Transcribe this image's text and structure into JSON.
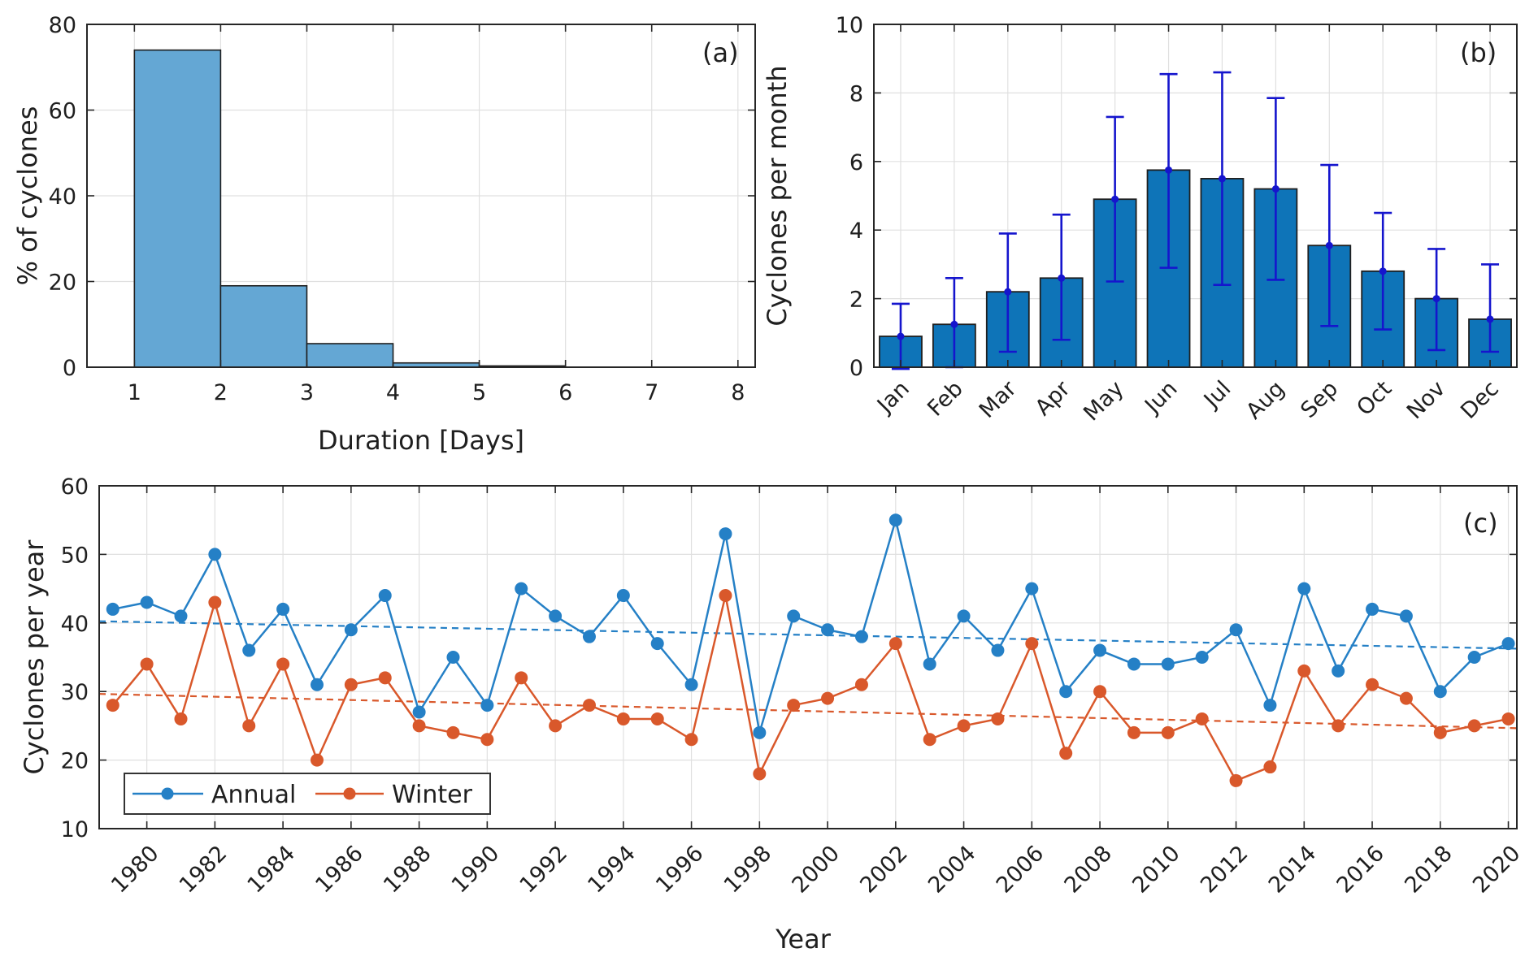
{
  "figure": {
    "background": "#ffffff",
    "colors": {
      "hist_fill": "#64a7d4",
      "hist_edge": "#1f1f1f",
      "bar_fill": "#0e74b8",
      "bar_edge": "#1f1f1f",
      "errorbar": "#1515cd",
      "annual": "#2580c6",
      "winter": "#d9582b",
      "grid": "#e0e0e0",
      "axis": "#262626",
      "text": "#1f1f1f"
    }
  },
  "chart_data": [
    {
      "id": "a",
      "type": "bar",
      "panel_label": "(a)",
      "xlabel": "Duration [Days]",
      "ylabel": "% of cyclones",
      "bin_edges": [
        1,
        2,
        3,
        4,
        5,
        6,
        7,
        8
      ],
      "values": [
        74,
        19,
        5.5,
        1,
        0.3,
        0,
        0
      ],
      "xticks": [
        1,
        2,
        3,
        4,
        5,
        6,
        7,
        8
      ],
      "yticks": [
        0,
        20,
        40,
        60,
        80
      ],
      "xlim": [
        0.45,
        8.2
      ],
      "ylim": [
        0,
        80
      ],
      "grid": true
    },
    {
      "id": "b",
      "type": "bar",
      "panel_label": "(b)",
      "xlabel": "",
      "ylabel": "Cyclones per month",
      "categories": [
        "Jan",
        "Feb",
        "Mar",
        "Apr",
        "May",
        "Jun",
        "Jul",
        "Aug",
        "Sep",
        "Oct",
        "Nov",
        "Dec"
      ],
      "values": [
        0.9,
        1.25,
        2.2,
        2.6,
        4.9,
        5.75,
        5.5,
        5.2,
        3.55,
        2.8,
        2.0,
        1.4
      ],
      "error_low": [
        -0.05,
        0,
        0.45,
        0.8,
        2.5,
        2.9,
        2.4,
        2.55,
        1.2,
        1.1,
        0.5,
        0.45
      ],
      "error_high": [
        1.85,
        2.6,
        3.9,
        4.45,
        7.3,
        8.55,
        8.6,
        7.85,
        5.9,
        4.5,
        3.45,
        3.0
      ],
      "yticks": [
        0,
        2,
        4,
        6,
        8,
        10
      ],
      "ylim": [
        0,
        10
      ],
      "grid": true
    },
    {
      "id": "c",
      "type": "line",
      "panel_label": "(c)",
      "xlabel": "Year",
      "ylabel": "Cyclones per year",
      "x_start_year": 1979,
      "x": [
        1979,
        1980,
        1981,
        1982,
        1983,
        1984,
        1985,
        1986,
        1987,
        1988,
        1989,
        1990,
        1991,
        1992,
        1993,
        1994,
        1995,
        1996,
        1997,
        1998,
        1999,
        2000,
        2001,
        2002,
        2003,
        2004,
        2005,
        2006,
        2007,
        2008,
        2009,
        2010,
        2011,
        2012,
        2013,
        2014,
        2015,
        2016,
        2017,
        2018,
        2019,
        2020
      ],
      "series": [
        {
          "name": "Annual",
          "values": [
            42,
            43,
            41,
            50,
            36,
            42,
            31,
            39,
            44,
            27,
            35,
            28,
            45,
            41,
            38,
            44,
            37,
            31,
            53,
            24,
            41,
            39,
            38,
            55,
            34,
            41,
            36,
            45,
            30,
            36,
            34,
            34,
            35,
            39,
            28,
            45,
            33,
            42,
            41,
            30,
            35,
            37
          ]
        },
        {
          "name": "Winter",
          "values": [
            28,
            34,
            26,
            43,
            25,
            34,
            20,
            31,
            32,
            25,
            24,
            23,
            32,
            25,
            28,
            26,
            26,
            23,
            44,
            18,
            28,
            29,
            31,
            37,
            23,
            25,
            26,
            37,
            21,
            30,
            24,
            24,
            26,
            17,
            19,
            33,
            25,
            31,
            29,
            24,
            25,
            26
          ]
        }
      ],
      "trend_lines": [
        {
          "series": "Annual",
          "y_start": 40.25,
          "y_end": 36.25
        },
        {
          "series": "Winter",
          "y_start": 29.65,
          "y_end": 24.65
        }
      ],
      "legend": {
        "position": "bottom-left",
        "entries": [
          "Annual",
          "Winter"
        ]
      },
      "xticks": [
        1980,
        1982,
        1984,
        1986,
        1988,
        1990,
        1992,
        1994,
        1996,
        1998,
        2000,
        2002,
        2004,
        2006,
        2008,
        2010,
        2012,
        2014,
        2016,
        2018,
        2020
      ],
      "yticks": [
        10,
        20,
        30,
        40,
        50,
        60
      ],
      "xlim": [
        1978.6,
        2020.25
      ],
      "ylim": [
        10,
        60
      ],
      "grid": true
    }
  ]
}
